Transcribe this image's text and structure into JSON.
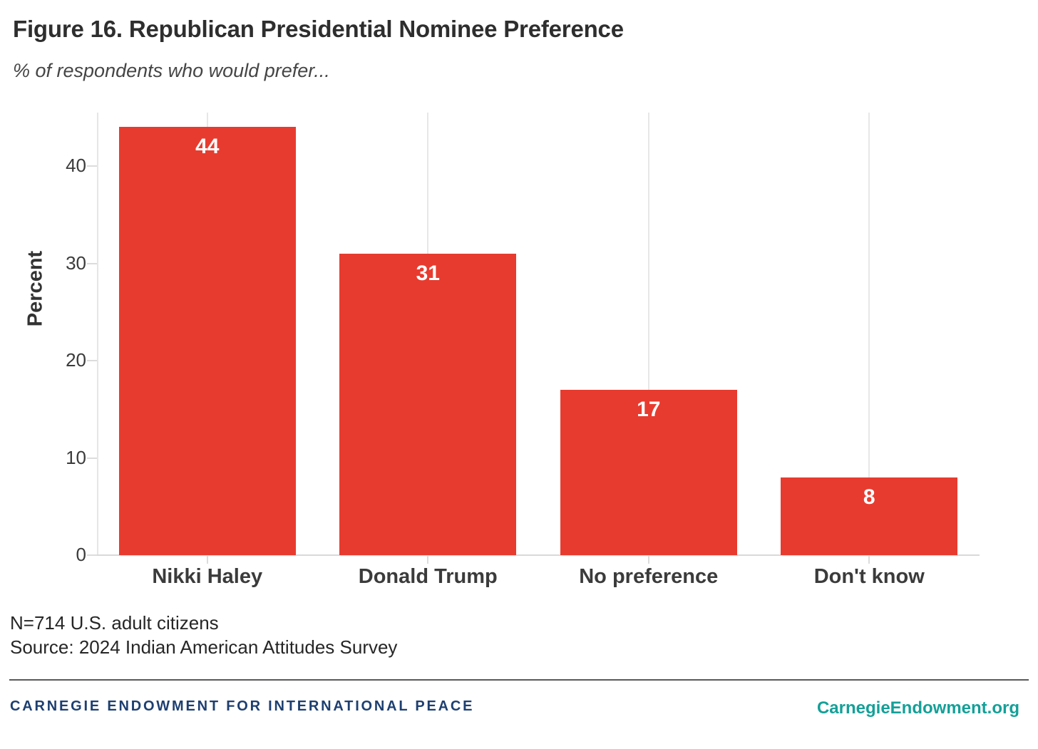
{
  "header": {
    "title": "Figure 16. Republican Presidential Nominee Preference",
    "subtitle": "% of respondents who would prefer..."
  },
  "chart_data": {
    "type": "bar",
    "categories": [
      "Nikki Haley",
      "Donald Trump",
      "No preference",
      "Don't know"
    ],
    "values": [
      44,
      31,
      17,
      8
    ],
    "title": "Figure 16. Republican Presidential Nominee Preference",
    "subtitle": "% of respondents who would prefer...",
    "xlabel": "",
    "ylabel": "Percent",
    "yticks": [
      0,
      10,
      20,
      30,
      40
    ],
    "ylim": [
      0,
      45.5
    ],
    "bar_color": "#e83b2f",
    "value_label_color": "#ffffff",
    "grid": "vertical gridline at each category center, no horizontal gridlines",
    "legend_position": "none"
  },
  "notes": {
    "line1": "N=714 U.S. adult citizens",
    "line2": "Source: 2024 Indian American Attitudes Survey"
  },
  "footer": {
    "org": "CARNEGIE ENDOWMENT FOR INTERNATIONAL PEACE",
    "org_color": "#1e3f70",
    "site": "CarnegieEndowment.org",
    "site_color": "#14a098"
  }
}
